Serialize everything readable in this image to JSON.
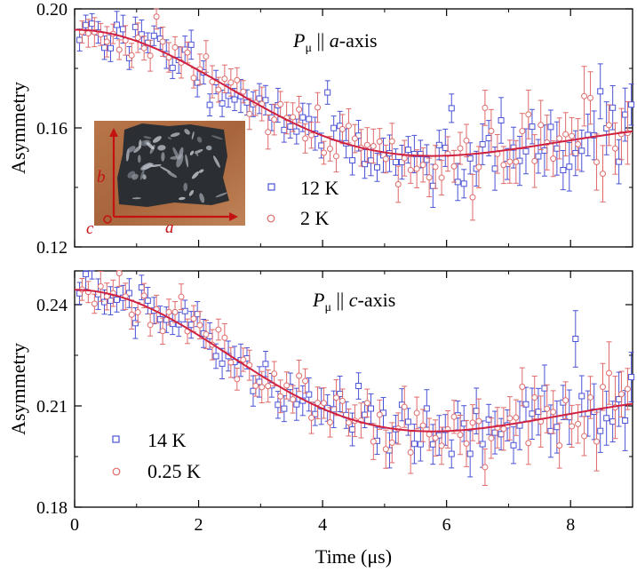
{
  "figure": {
    "x_axis_label": "Time (μs)",
    "x_ticks": [
      "0",
      "2",
      "4",
      "6",
      "8"
    ]
  },
  "chart_data": [
    {
      "type": "scatter",
      "panel": "top",
      "title": {
        "prefix": "P",
        "sub": "μ",
        "mid": " || ",
        "axis": "a",
        "suffix": "-axis"
      },
      "ylabel": "Asymmetry",
      "xlim": [
        0,
        9
      ],
      "ylim": [
        0.12,
        0.2
      ],
      "y_ticks": [
        "0.12",
        "0.16",
        "0.20"
      ],
      "legend": {
        "location": "center-left",
        "entries": [
          "12 K",
          "2 K"
        ]
      },
      "inset": {
        "caption": "crystal photo with axes",
        "labels": {
          "a": "a",
          "b": "b",
          "c": "c"
        }
      },
      "fit": {
        "baseline": 0.149,
        "amplitude": 0.044,
        "sigma": 0.3,
        "color": "#d02040"
      },
      "series": [
        {
          "name": "12 K",
          "marker": "square",
          "color": "#4a52d6",
          "seed": 11,
          "noise": 0.004,
          "noise_growth": 0.0042
        },
        {
          "name": "2 K",
          "marker": "circle",
          "color": "#e06a6a",
          "seed": 29,
          "noise": 0.004,
          "noise_growth": 0.0046
        }
      ]
    },
    {
      "type": "scatter",
      "panel": "bottom",
      "title": {
        "prefix": "P",
        "sub": "μ",
        "mid": " || ",
        "axis": "c",
        "suffix": "-axis"
      },
      "ylabel": "Asymmetry",
      "xlim": [
        0,
        9
      ],
      "ylim": [
        0.18,
        0.25
      ],
      "y_ticks": [
        "0.18",
        "0.21",
        "0.24"
      ],
      "legend": {
        "location": "bottom-left",
        "entries": [
          "14 K",
          "0.25 K"
        ]
      },
      "fit": {
        "baseline": 0.2009,
        "amplitude": 0.0435,
        "sigma": 0.3,
        "color": "#d02040"
      },
      "series": [
        {
          "name": "14 K",
          "marker": "square",
          "color": "#4a52d6",
          "seed": 7,
          "noise": 0.0035,
          "noise_growth": 0.0038
        },
        {
          "name": "0.25 K",
          "marker": "circle",
          "color": "#e06a6a",
          "seed": 41,
          "noise": 0.0035,
          "noise_growth": 0.004
        }
      ]
    }
  ]
}
